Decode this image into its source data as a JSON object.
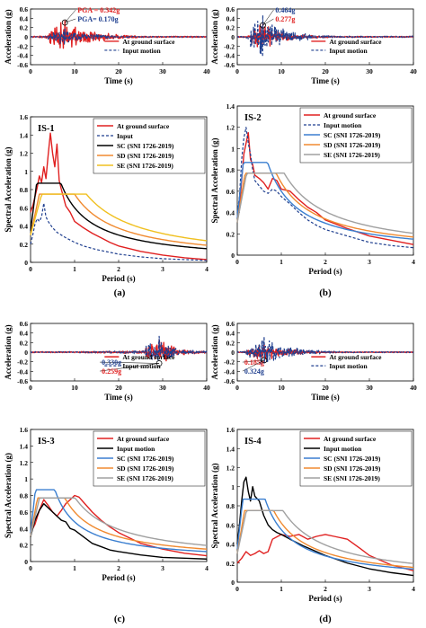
{
  "figure": {
    "time_axis_label": "Time (s)",
    "period_axis_label": "Period (s)",
    "acc_axis_label": "Acceleration (g)",
    "sa_axis_label": "Spectral Acceleration (g)",
    "captions": [
      "(a)",
      "(b)",
      "(c)",
      "(d)"
    ],
    "colors": {
      "surface": "#e02020",
      "input": "#1f3f8f",
      "SC": "#3b7fd0",
      "SD": "#f08a30",
      "SE_gray": "#a0a0a0",
      "SE_yellow": "#f0c020",
      "annot_red": "#e02020",
      "annot_blue": "#1f3f8f"
    }
  },
  "chart_data": [
    {
      "type": "line",
      "id": "ts1",
      "xlabel": "Time (s)",
      "ylabel": "Acceleration (g)",
      "xlim": [
        0,
        40
      ],
      "ylim": [
        -0.6,
        0.6
      ],
      "xticks": [
        "0",
        "10",
        "20",
        "30",
        "40"
      ],
      "yticks": [
        "-0.6",
        "-0.4",
        "-0.2",
        "0",
        "0.2",
        "0.4",
        "0.6"
      ],
      "legend": [
        "At ground surface",
        "Input motion"
      ],
      "annotations": [
        {
          "text": "PGA = 0.342g",
          "color": "red"
        },
        {
          "text": "PGA= 0.170g",
          "color": "blue"
        }
      ],
      "strong_motion": [
        4,
        16
      ],
      "peak_time": 7.8,
      "surface_pga": 0.342,
      "input_pga": 0.17
    },
    {
      "type": "line",
      "id": "ts2",
      "xlabel": "Time (s)",
      "ylabel": "Acceleration (g)",
      "xlim": [
        0,
        40
      ],
      "ylim": [
        -0.6,
        0.6
      ],
      "xticks": [
        "0",
        "10",
        "20",
        "30",
        "40"
      ],
      "yticks": [
        "-0.6",
        "-0.4",
        "-0.2",
        "0",
        "0.2",
        "0.4",
        "0.6"
      ],
      "legend": [
        "At ground surface",
        "Input motion"
      ],
      "annotations": [
        {
          "text": "0.464g",
          "color": "blue"
        },
        {
          "text": "0.277g",
          "color": "red"
        }
      ],
      "strong_motion": [
        3,
        12
      ],
      "peak_time": 5.8,
      "surface_pga": 0.277,
      "input_pga": 0.464
    },
    {
      "type": "line",
      "id": "sa1",
      "label": "IS-1",
      "xlabel": "Period (s)",
      "ylabel": "Spectral Acceleration (g)",
      "xlim": [
        0,
        4
      ],
      "ylim": [
        0,
        1.6
      ],
      "xticks": [
        "0",
        "1",
        "2",
        "3",
        "4"
      ],
      "yticks": [
        "0",
        "0.2",
        "0.4",
        "0.6",
        "0.8",
        "1",
        "1.2",
        "1.4",
        "1.6"
      ],
      "series": [
        {
          "name": "At ground surface",
          "style": "surface",
          "x": [
            0,
            0.05,
            0.1,
            0.15,
            0.2,
            0.25,
            0.3,
            0.35,
            0.4,
            0.45,
            0.5,
            0.55,
            0.6,
            0.65,
            0.7,
            0.8,
            0.9,
            1.0,
            1.2,
            1.4,
            1.6,
            1.8,
            2.0,
            2.5,
            3.0,
            3.5,
            4.0
          ],
          "y": [
            0.55,
            0.62,
            0.72,
            0.82,
            0.95,
            0.88,
            1.05,
            0.92,
            1.18,
            1.42,
            1.2,
            1.05,
            1.3,
            0.9,
            0.8,
            0.62,
            0.55,
            0.45,
            0.38,
            0.32,
            0.27,
            0.22,
            0.18,
            0.12,
            0.08,
            0.05,
            0.03
          ]
        },
        {
          "name": "Input",
          "style": "input",
          "x": [
            0,
            0.05,
            0.1,
            0.15,
            0.2,
            0.25,
            0.3,
            0.35,
            0.4,
            0.5,
            0.6,
            0.8,
            1.0,
            1.2,
            1.5,
            2.0,
            2.5,
            3.0,
            3.5,
            4.0
          ],
          "y": [
            0.2,
            0.3,
            0.42,
            0.48,
            0.45,
            0.5,
            0.65,
            0.5,
            0.45,
            0.38,
            0.33,
            0.27,
            0.22,
            0.18,
            0.14,
            0.09,
            0.06,
            0.04,
            0.03,
            0.02
          ]
        },
        {
          "name": "SC (SNI 1726-2019)",
          "style": "black",
          "spec": [
            0.35,
            0.87,
            0.6
          ]
        },
        {
          "name": "SD (SNI 1726-2019)",
          "style": "SD",
          "spec": [
            0.3,
            0.75,
            0.75
          ]
        },
        {
          "name": "SE (SNI 1726-2019)",
          "style": "SE_yellow",
          "spec": [
            0.3,
            0.75,
            0.95
          ]
        }
      ]
    },
    {
      "type": "line",
      "id": "sa2",
      "label": "IS-2",
      "xlabel": "Period (s)",
      "ylabel": "Spectral Acceleration (g)",
      "xlim": [
        0,
        4
      ],
      "ylim": [
        0,
        1.4
      ],
      "xticks": [
        "0",
        "1",
        "2",
        "3",
        "4"
      ],
      "yticks": [
        "0",
        "0.2",
        "0.4",
        "0.6",
        "0.8",
        "1",
        "1.2",
        "1.4"
      ],
      "series": [
        {
          "name": "At ground surface",
          "style": "surface",
          "x": [
            0,
            0.05,
            0.1,
            0.15,
            0.2,
            0.25,
            0.3,
            0.35,
            0.4,
            0.5,
            0.6,
            0.7,
            0.8,
            0.9,
            1.0,
            1.2,
            1.4,
            1.6,
            1.8,
            2.0,
            2.5,
            3.0,
            3.5,
            4.0
          ],
          "y": [
            0.35,
            0.45,
            0.7,
            0.95,
            1.05,
            1.15,
            0.9,
            0.85,
            0.75,
            0.72,
            0.68,
            0.62,
            0.72,
            0.7,
            0.62,
            0.6,
            0.52,
            0.45,
            0.4,
            0.33,
            0.25,
            0.18,
            0.14,
            0.1
          ]
        },
        {
          "name": "Input motion",
          "style": "input",
          "x": [
            0,
            0.05,
            0.1,
            0.15,
            0.2,
            0.25,
            0.3,
            0.35,
            0.4,
            0.5,
            0.6,
            0.7,
            0.8,
            0.9,
            1.0,
            1.2,
            1.4,
            1.6,
            1.8,
            2.0,
            2.5,
            3.0,
            3.5,
            4.0
          ],
          "y": [
            0.4,
            0.55,
            0.9,
            1.1,
            1.2,
            1.05,
            0.95,
            0.8,
            0.7,
            0.65,
            0.6,
            0.58,
            0.62,
            0.6,
            0.55,
            0.48,
            0.4,
            0.33,
            0.28,
            0.24,
            0.18,
            0.12,
            0.09,
            0.07
          ]
        },
        {
          "name": "SC (SNI 1726-2019)",
          "style": "SC",
          "spec": [
            0.3,
            0.87,
            0.6
          ]
        },
        {
          "name": "SD (SNI 1726-2019)",
          "style": "SD",
          "spec": [
            0.4,
            0.77,
            0.68
          ]
        },
        {
          "name": "SE (SNI 1726-2019)",
          "style": "SE_gray",
          "spec": [
            0.5,
            0.77,
            0.82
          ]
        }
      ]
    },
    {
      "type": "line",
      "id": "ts3",
      "xlabel": "Time (s)",
      "ylabel": "Acceleration (g)",
      "xlim": [
        0,
        40
      ],
      "ylim": [
        -0.6,
        0.6
      ],
      "xticks": [
        "0",
        "10",
        "20",
        "30",
        "40"
      ],
      "yticks": [
        "-0.6",
        "-0.4",
        "-0.2",
        "0",
        "0.2",
        "0.4",
        "0.6"
      ],
      "legend": [
        "At ground surface",
        "Input motion"
      ],
      "annotations": [
        {
          "text": "0.330g",
          "color": "blue"
        },
        {
          "text": "0.259g",
          "color": "red"
        }
      ],
      "strong_motion": [
        26,
        33
      ],
      "peak_time": 29.2,
      "surface_pga": 0.259,
      "input_pga": 0.33
    },
    {
      "type": "line",
      "id": "ts4",
      "xlabel": "Time (s)",
      "ylabel": "Acceleration (g)",
      "xlim": [
        0,
        40
      ],
      "ylim": [
        -0.6,
        0.6
      ],
      "xticks": [
        "0",
        "10",
        "20",
        "30",
        "40"
      ],
      "yticks": [
        "-0.6",
        "-0.4",
        "-0.2",
        "0",
        "0.2",
        "0.4",
        "0.6"
      ],
      "legend": [
        "At ground surface",
        "Input motion"
      ],
      "annotations": [
        {
          "text": "0.185g",
          "color": "red"
        },
        {
          "text": "0.324g",
          "color": "blue"
        }
      ],
      "strong_motion": [
        2,
        14
      ],
      "peak_time": 6.1,
      "surface_pga": 0.185,
      "input_pga": 0.324
    },
    {
      "type": "line",
      "id": "sa3",
      "label": "IS-3",
      "xlabel": "Period (s)",
      "ylabel": "Spectral Acceleration (g)",
      "xlim": [
        0,
        4
      ],
      "ylim": [
        0,
        1.6
      ],
      "xticks": [
        "0",
        "1",
        "2",
        "3",
        "4"
      ],
      "yticks": [
        "0",
        "0.2",
        "0.4",
        "0.6",
        "0.8",
        "1",
        "1.2",
        "1.4",
        "1.6"
      ],
      "series": [
        {
          "name": "At ground surface",
          "style": "surface",
          "x": [
            0,
            0.1,
            0.2,
            0.3,
            0.4,
            0.5,
            0.6,
            0.7,
            0.8,
            0.9,
            1.0,
            1.1,
            1.2,
            1.4,
            1.6,
            1.8,
            2.0,
            2.5,
            3.0,
            3.5,
            4.0
          ],
          "y": [
            0.35,
            0.45,
            0.62,
            0.75,
            0.68,
            0.6,
            0.55,
            0.62,
            0.7,
            0.75,
            0.8,
            0.78,
            0.72,
            0.6,
            0.5,
            0.42,
            0.35,
            0.22,
            0.15,
            0.1,
            0.07
          ]
        },
        {
          "name": "Input motion",
          "style": "black",
          "x": [
            0,
            0.1,
            0.2,
            0.3,
            0.4,
            0.5,
            0.6,
            0.7,
            0.8,
            0.9,
            1.0,
            1.2,
            1.4,
            1.6,
            1.8,
            2.0,
            2.5,
            3.0,
            3.5,
            4.0
          ],
          "y": [
            0.3,
            0.5,
            0.62,
            0.7,
            0.65,
            0.6,
            0.55,
            0.5,
            0.48,
            0.4,
            0.38,
            0.3,
            0.22,
            0.18,
            0.14,
            0.12,
            0.08,
            0.05,
            0.04,
            0.03
          ]
        },
        {
          "name": "SC (SNI 1726-2019)",
          "style": "SC",
          "spec": [
            0.35,
            0.87,
            0.48
          ]
        },
        {
          "name": "SD (SNI 1726-2019)",
          "style": "SD",
          "spec": [
            0.35,
            0.77,
            0.6
          ]
        },
        {
          "name": "SE (SNI 1726-2019)",
          "style": "SE_gray",
          "spec": [
            0.35,
            0.77,
            0.78
          ]
        }
      ]
    },
    {
      "type": "line",
      "id": "sa4",
      "label": "IS-4",
      "xlabel": "Period (s)",
      "ylabel": "Spectral Acceleration (g)",
      "xlim": [
        0,
        4
      ],
      "ylim": [
        0,
        1.6
      ],
      "xticks": [
        "0",
        "1",
        "2",
        "3",
        "4"
      ],
      "yticks": [
        "0",
        "0.2",
        "0.4",
        "0.6",
        "0.8",
        "1",
        "1.2",
        "1.4",
        "1.6"
      ],
      "series": [
        {
          "name": "At ground surface",
          "style": "surface",
          "x": [
            0,
            0.1,
            0.2,
            0.3,
            0.4,
            0.5,
            0.6,
            0.7,
            0.8,
            1.0,
            1.2,
            1.4,
            1.6,
            1.8,
            2.0,
            2.2,
            2.5,
            2.8,
            3.0,
            3.5,
            4.0
          ],
          "y": [
            0.2,
            0.25,
            0.32,
            0.28,
            0.3,
            0.33,
            0.3,
            0.32,
            0.45,
            0.5,
            0.48,
            0.5,
            0.45,
            0.48,
            0.5,
            0.48,
            0.45,
            0.35,
            0.28,
            0.18,
            0.12
          ]
        },
        {
          "name": "Input motion",
          "style": "black",
          "x": [
            0,
            0.05,
            0.1,
            0.15,
            0.2,
            0.25,
            0.3,
            0.35,
            0.4,
            0.5,
            0.6,
            0.7,
            0.8,
            0.9,
            1.0,
            1.2,
            1.5,
            2.0,
            2.5,
            3.0,
            3.5,
            4.0
          ],
          "y": [
            0.4,
            0.6,
            0.85,
            1.05,
            1.1,
            0.95,
            0.85,
            1.0,
            0.9,
            0.85,
            0.7,
            0.6,
            0.55,
            0.52,
            0.5,
            0.45,
            0.38,
            0.28,
            0.2,
            0.14,
            0.1,
            0.07
          ]
        },
        {
          "name": "SC (SNI 1726-2019)",
          "style": "SC",
          "spec": [
            0.3,
            0.87,
            0.55
          ]
        },
        {
          "name": "SD (SNI 1726-2019)",
          "style": "SD",
          "spec": [
            0.3,
            0.75,
            0.62
          ]
        },
        {
          "name": "SE (SNI 1726-2019)",
          "style": "SE_gray",
          "spec": [
            0.3,
            0.75,
            0.78
          ]
        }
      ]
    }
  ]
}
